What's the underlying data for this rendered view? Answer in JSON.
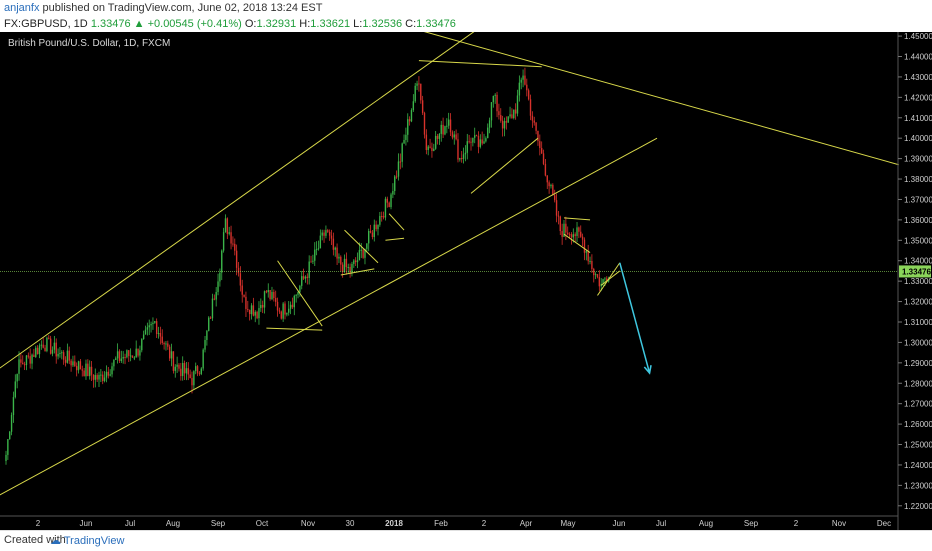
{
  "header": {
    "author": "anjanfx",
    "published_text": "published on TradingView.com, June 02, 2018 13:24 EST",
    "symbol": "FX:GBPUSD, 1D",
    "last": "1.33476",
    "change": "+0.00545 (+0.41%)",
    "o_label": "O:",
    "o_value": "1.32931",
    "h_label": "H:",
    "h_value": "1.33621",
    "l_label": "L:",
    "l_value": "1.32536",
    "c_label": "C:",
    "c_value": "1.33476"
  },
  "footer": {
    "created_with": "Created with",
    "brand": "TradingView"
  },
  "colors": {
    "background": "#000000",
    "bull": "#3bb54a",
    "bear": "#d8322c",
    "trendline": "#d8d84a",
    "arrow": "#3fc7e0",
    "price_label_bg": "#8bd45a"
  },
  "chart_data": {
    "type": "candlestick",
    "title": "British Pound/U.S. Dollar, 1D, FXCM",
    "current_price": 1.33476,
    "current_price_label": "1.33476",
    "ylim": [
      1.215,
      1.452
    ],
    "y_ticks": [
      "1.45000",
      "1.44000",
      "1.43000",
      "1.42000",
      "1.41000",
      "1.40000",
      "1.39000",
      "1.38000",
      "1.37000",
      "1.36000",
      "1.35000",
      "1.34000",
      "1.33000",
      "1.32000",
      "1.31000",
      "1.30000",
      "1.29000",
      "1.28000",
      "1.27000",
      "1.26000",
      "1.25000",
      "1.24000",
      "1.23000",
      "1.22000"
    ],
    "x_ticks": [
      "2",
      "Jun",
      "Jul",
      "Aug",
      "Sep",
      "Oct",
      "Nov",
      "30",
      "2018",
      "Feb",
      "2",
      "Apr",
      "May",
      "Jun",
      "Jul",
      "Aug",
      "Sep",
      "2",
      "Nov",
      "Dec"
    ],
    "close_path": [
      [
        0,
        1.245
      ],
      [
        6,
        1.288
      ],
      [
        12,
        1.292
      ],
      [
        20,
        1.3
      ],
      [
        28,
        1.295
      ],
      [
        40,
        1.288
      ],
      [
        50,
        1.282
      ],
      [
        60,
        1.292
      ],
      [
        70,
        1.295
      ],
      [
        80,
        1.31
      ],
      [
        90,
        1.29
      ],
      [
        100,
        1.282
      ],
      [
        105,
        1.29
      ],
      [
        115,
        1.338
      ],
      [
        118,
        1.358
      ],
      [
        122,
        1.35
      ],
      [
        128,
        1.32
      ],
      [
        135,
        1.315
      ],
      [
        140,
        1.325
      ],
      [
        148,
        1.315
      ],
      [
        155,
        1.322
      ],
      [
        165,
        1.34
      ],
      [
        172,
        1.355
      ],
      [
        178,
        1.34
      ],
      [
        185,
        1.335
      ],
      [
        192,
        1.345
      ],
      [
        200,
        1.36
      ],
      [
        206,
        1.37
      ],
      [
        212,
        1.39
      ],
      [
        218,
        1.415
      ],
      [
        222,
        1.43
      ],
      [
        226,
        1.395
      ],
      [
        232,
        1.4
      ],
      [
        238,
        1.41
      ],
      [
        244,
        1.39
      ],
      [
        250,
        1.4
      ],
      [
        256,
        1.395
      ],
      [
        262,
        1.42
      ],
      [
        268,
        1.405
      ],
      [
        274,
        1.415
      ],
      [
        278,
        1.432
      ],
      [
        284,
        1.405
      ],
      [
        290,
        1.385
      ],
      [
        294,
        1.37
      ],
      [
        298,
        1.355
      ],
      [
        304,
        1.355
      ],
      [
        310,
        1.35
      ],
      [
        316,
        1.335
      ],
      [
        320,
        1.328
      ],
      [
        324,
        1.3348
      ]
    ],
    "annotations": {
      "arrow": {
        "from_index": 330,
        "from_price": 1.339,
        "to_index": 346,
        "to_price": 1.285
      },
      "lines": [
        {
          "x1": -4,
          "p1": 1.225,
          "x2": 350,
          "p2": 1.4
        },
        {
          "x1": -4,
          "p1": 1.287,
          "x2": 256,
          "p2": 1.455
        },
        {
          "x1": 210,
          "p1": 1.456,
          "x2": 480,
          "p2": 1.387
        },
        {
          "x1": 222,
          "p1": 1.438,
          "x2": 288,
          "p2": 1.435
        },
        {
          "x1": 250,
          "p1": 1.373,
          "x2": 286,
          "p2": 1.4
        },
        {
          "x1": 140,
          "p1": 1.307,
          "x2": 170,
          "p2": 1.306
        },
        {
          "x1": 146,
          "p1": 1.34,
          "x2": 170,
          "p2": 1.308
        },
        {
          "x1": 180,
          "p1": 1.333,
          "x2": 198,
          "p2": 1.336
        },
        {
          "x1": 182,
          "p1": 1.355,
          "x2": 200,
          "p2": 1.339
        },
        {
          "x1": 206,
          "p1": 1.363,
          "x2": 214,
          "p2": 1.355
        },
        {
          "x1": 204,
          "p1": 1.35,
          "x2": 214,
          "p2": 1.351
        },
        {
          "x1": 300,
          "p1": 1.361,
          "x2": 314,
          "p2": 1.36
        },
        {
          "x1": 300,
          "p1": 1.353,
          "x2": 314,
          "p2": 1.344
        },
        {
          "x1": 318,
          "p1": 1.323,
          "x2": 330,
          "p2": 1.339
        },
        {
          "x1": 320,
          "p1": 1.328,
          "x2": 330,
          "p2": 1.335
        }
      ]
    }
  }
}
